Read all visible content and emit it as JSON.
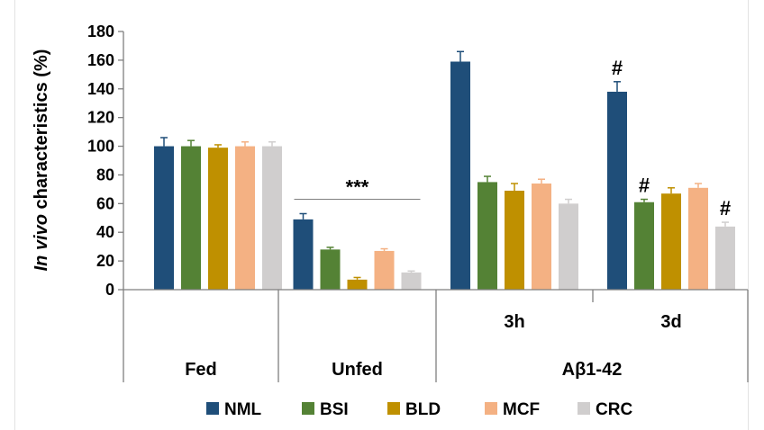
{
  "chart_data": {
    "type": "bar",
    "ylabel_italic": "In vivo",
    "ylabel_rest": " characteristics (%)",
    "ylim": [
      0,
      180
    ],
    "yticks": [
      0,
      20,
      40,
      60,
      80,
      100,
      120,
      140,
      160,
      180
    ],
    "groups": [
      {
        "label": "Fed",
        "sublabel": ""
      },
      {
        "label": "Unfed",
        "sublabel": ""
      },
      {
        "label": "Aβ1-42",
        "sublabel": "3h"
      },
      {
        "label": "",
        "sublabel": "3d"
      }
    ],
    "top_level_groups": [
      "Fed",
      "Unfed",
      "Aβ1-42"
    ],
    "series": [
      {
        "name": "NML",
        "color": "#1f4e79",
        "values": [
          100,
          49,
          159,
          138
        ],
        "errors": [
          6,
          4,
          7,
          7
        ]
      },
      {
        "name": "BSI",
        "color": "#548235",
        "values": [
          100,
          28,
          75,
          61
        ],
        "errors": [
          4,
          1.5,
          4,
          2
        ]
      },
      {
        "name": "BLD",
        "color": "#bf9000",
        "values": [
          99,
          7,
          69,
          67
        ],
        "errors": [
          2,
          1.5,
          5,
          4
        ]
      },
      {
        "name": "MCF",
        "color": "#f4b183",
        "values": [
          100,
          27,
          74,
          71
        ],
        "errors": [
          3,
          1.5,
          3,
          3
        ]
      },
      {
        "name": "CRC",
        "color": "#d0cece",
        "values": [
          100,
          12,
          60,
          44
        ],
        "errors": [
          3,
          1,
          3,
          3
        ]
      }
    ],
    "annotations": [
      {
        "text": "***",
        "group": 1
      },
      {
        "text": "#",
        "group": 3,
        "series": 0
      },
      {
        "text": "#",
        "group": 3,
        "series": 1
      },
      {
        "text": "#",
        "group": 3,
        "series": 4
      }
    ],
    "legend_position": "bottom"
  }
}
